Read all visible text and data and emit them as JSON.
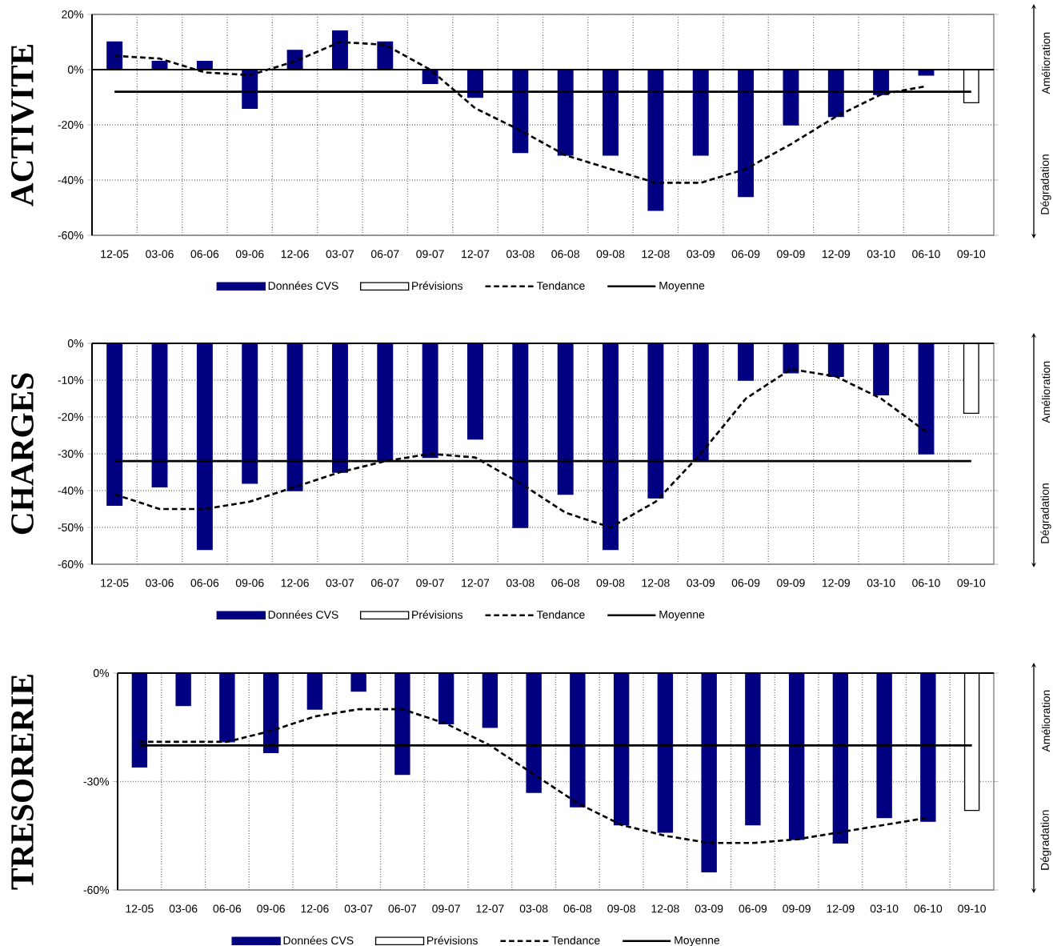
{
  "chart_data": [
    {
      "type": "bar",
      "ylabel": "ACTIVITE",
      "categories": [
        "12-05",
        "03-06",
        "06-06",
        "09-06",
        "12-06",
        "03-07",
        "06-07",
        "09-07",
        "12-07",
        "03-08",
        "06-08",
        "09-08",
        "12-08",
        "03-09",
        "06-09",
        "09-09",
        "12-09",
        "03-10",
        "06-10",
        "09-10"
      ],
      "series": [
        {
          "name": "Données CVS",
          "color": "#000080",
          "values": [
            10,
            3,
            3,
            -14,
            7,
            14,
            10,
            -5,
            -10,
            -30,
            -31,
            -31,
            -51,
            -31,
            -46,
            -20,
            -17,
            -9,
            -2,
            null
          ]
        },
        {
          "name": "Prévisions",
          "type": "bar",
          "color": "#ffffff",
          "values": [
            null,
            null,
            null,
            null,
            null,
            null,
            null,
            null,
            null,
            null,
            null,
            null,
            null,
            null,
            null,
            null,
            null,
            null,
            null,
            -12
          ]
        },
        {
          "name": "Tendance",
          "type": "line",
          "color": "#000000",
          "line_style": "dashed",
          "values": [
            5,
            4,
            -1,
            -2,
            3,
            10,
            9,
            0,
            -14,
            -22,
            -31,
            -36,
            -41,
            -41,
            -36,
            -27,
            -17,
            -9,
            -6,
            null
          ]
        },
        {
          "name": "Moyenne",
          "type": "line",
          "color": "#000000",
          "line_style": "solid",
          "values": [
            -8,
            -8,
            -8,
            -8,
            -8,
            -8,
            -8,
            -8,
            -8,
            -8,
            -8,
            -8,
            -8,
            -8,
            -8,
            -8,
            -8,
            -8,
            -8,
            -8
          ]
        }
      ],
      "ylim": [
        -60,
        20
      ],
      "yticks": [
        {
          "value": -60,
          "label": "-60%"
        },
        {
          "value": -40,
          "label": "-40%"
        },
        {
          "value": -20,
          "label": "-20%"
        },
        {
          "value": 0,
          "label": "0%"
        },
        {
          "value": 20,
          "label": "20%"
        }
      ],
      "grid": true,
      "legend": "bottom",
      "annotations": [
        "Amélioration",
        "Dégradation"
      ]
    },
    {
      "type": "bar",
      "ylabel": "CHARGES",
      "categories": [
        "12-05",
        "03-06",
        "06-06",
        "09-06",
        "12-06",
        "03-07",
        "06-07",
        "09-07",
        "12-07",
        "03-08",
        "06-08",
        "09-08",
        "12-08",
        "03-09",
        "06-09",
        "09-09",
        "12-09",
        "03-10",
        "06-10",
        "09-10"
      ],
      "series": [
        {
          "name": "Données CVS",
          "color": "#000080",
          "values": [
            -44,
            -39,
            -56,
            -38,
            -40,
            -35,
            -32,
            -31,
            -26,
            -50,
            -41,
            -56,
            -42,
            -32,
            -10,
            -8,
            -9,
            -14,
            -30,
            null
          ]
        },
        {
          "name": "Prévisions",
          "type": "bar",
          "color": "#ffffff",
          "values": [
            null,
            null,
            null,
            null,
            null,
            null,
            null,
            null,
            null,
            null,
            null,
            null,
            null,
            null,
            null,
            null,
            null,
            null,
            null,
            -19
          ]
        },
        {
          "name": "Tendance",
          "type": "line",
          "color": "#000000",
          "line_style": "dashed",
          "values": [
            -41,
            -45,
            -45,
            -43,
            -39,
            -35,
            -32,
            -30,
            -31,
            -38,
            -46,
            -50,
            -43,
            -30,
            -15,
            -7,
            -9,
            -15,
            -24,
            null
          ]
        },
        {
          "name": "Moyenne",
          "type": "line",
          "color": "#000000",
          "line_style": "solid",
          "values": [
            -32,
            -32,
            -32,
            -32,
            -32,
            -32,
            -32,
            -32,
            -32,
            -32,
            -32,
            -32,
            -32,
            -32,
            -32,
            -32,
            -32,
            -32,
            -32,
            -32
          ]
        }
      ],
      "ylim": [
        -60,
        0
      ],
      "yticks": [
        {
          "value": -60,
          "label": "-60%"
        },
        {
          "value": -50,
          "label": "-50%"
        },
        {
          "value": -40,
          "label": "-40%"
        },
        {
          "value": -30,
          "label": "-30%"
        },
        {
          "value": -20,
          "label": "-20%"
        },
        {
          "value": -10,
          "label": "-10%"
        },
        {
          "value": 0,
          "label": "0%"
        }
      ],
      "grid": true,
      "legend": "bottom",
      "annotations": [
        "Amélioration",
        "Dégradation"
      ]
    },
    {
      "type": "bar",
      "ylabel": "TRESORERIE",
      "categories": [
        "12-05",
        "03-06",
        "06-06",
        "09-06",
        "12-06",
        "03-07",
        "06-07",
        "09-07",
        "12-07",
        "03-08",
        "06-08",
        "09-08",
        "12-08",
        "03-09",
        "06-09",
        "09-09",
        "12-09",
        "03-10",
        "06-10",
        "09-10"
      ],
      "series": [
        {
          "name": "Données CVS",
          "color": "#000080",
          "values": [
            -26,
            -9,
            -19,
            -22,
            -10,
            -5,
            -28,
            -14,
            -15,
            -33,
            -37,
            -42,
            -44,
            -55,
            -42,
            -46,
            -47,
            -40,
            -41,
            null
          ]
        },
        {
          "name": "Prévisions",
          "type": "bar",
          "color": "#ffffff",
          "values": [
            null,
            null,
            null,
            null,
            null,
            null,
            null,
            null,
            null,
            null,
            null,
            null,
            null,
            null,
            null,
            null,
            null,
            null,
            null,
            -38
          ]
        },
        {
          "name": "Tendance",
          "type": "line",
          "color": "#000000",
          "line_style": "dashed",
          "values": [
            -19,
            -19,
            -19,
            -16,
            -12,
            -10,
            -10,
            -14,
            -20,
            -28,
            -36,
            -42,
            -45,
            -47,
            -47,
            -46,
            -44,
            -42,
            -40,
            null
          ]
        },
        {
          "name": "Moyenne",
          "type": "line",
          "color": "#000000",
          "line_style": "solid",
          "values": [
            -20,
            -20,
            -20,
            -20,
            -20,
            -20,
            -20,
            -20,
            -20,
            -20,
            -20,
            -20,
            -20,
            -20,
            -20,
            -20,
            -20,
            -20,
            -20,
            -20
          ]
        }
      ],
      "ylim": [
        -60,
        0
      ],
      "yticks": [
        {
          "value": -60,
          "label": "-60%"
        },
        {
          "value": -30,
          "label": "-30%"
        },
        {
          "value": 0,
          "label": "0%"
        }
      ],
      "grid": true,
      "legend": "bottom",
      "annotations": [
        "Amélioration",
        "Dégradation"
      ]
    }
  ]
}
